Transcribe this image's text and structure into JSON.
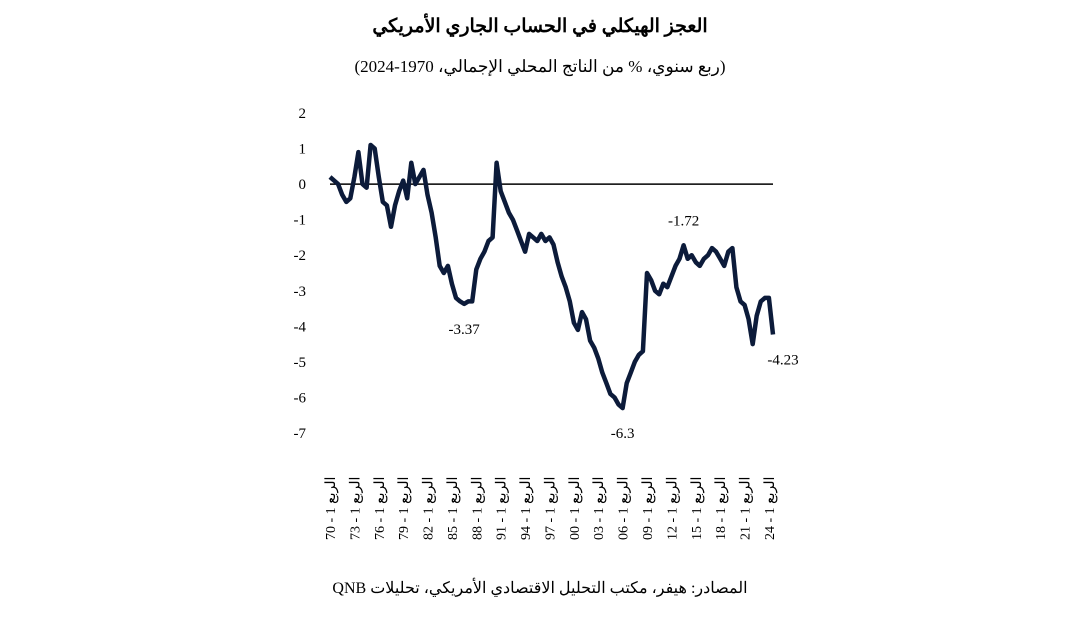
{
  "chart_data": {
    "type": "line",
    "title": "العجز الهيكلي في الحساب الجاري الأمريكي",
    "subtitle": "(ربع سنوي، % من الناتج المحلي الإجمالي، 1970-2024)",
    "source": "المصادر: هيفر، مكتب التحليل الاقتصادي الأمريكي، تحليلات QNB",
    "categories": [
      "الربع 1 - 70",
      null,
      null,
      null,
      null,
      null,
      "الربع 1 - 73",
      null,
      null,
      null,
      null,
      null,
      "الربع 1 - 76",
      null,
      null,
      null,
      null,
      null,
      "الربع 1 - 79",
      null,
      null,
      null,
      null,
      null,
      "الربع 1 - 82",
      null,
      null,
      null,
      null,
      null,
      "الربع 1 - 85",
      null,
      null,
      null,
      null,
      null,
      "الربع 1 - 88",
      null,
      null,
      null,
      null,
      null,
      "الربع 1 - 91",
      null,
      null,
      null,
      null,
      null,
      "الربع 1 - 94",
      null,
      null,
      null,
      null,
      null,
      "الربع 1 - 97",
      null,
      null,
      null,
      null,
      null,
      "الربع 1 - 00",
      null,
      null,
      null,
      null,
      null,
      "الربع 1 - 03",
      null,
      null,
      null,
      null,
      null,
      "الربع 1 - 06",
      null,
      null,
      null,
      null,
      null,
      "الربع 1 - 09",
      null,
      null,
      null,
      null,
      null,
      "الربع 1 - 12",
      null,
      null,
      null,
      null,
      null,
      "الربع 1 - 15",
      null,
      null,
      null,
      null,
      null,
      "الربع 1 - 18",
      null,
      null,
      null,
      null,
      null,
      "الربع 1 - 21",
      null,
      null,
      null,
      null,
      null,
      "الربع 1 - 24",
      null
    ],
    "values": [
      0.2,
      0.1,
      0.0,
      -0.3,
      -0.5,
      -0.4,
      0.2,
      0.9,
      0.0,
      -0.1,
      1.1,
      1.0,
      0.2,
      -0.5,
      -0.6,
      -1.2,
      -0.6,
      -0.2,
      0.1,
      -0.4,
      0.6,
      0.0,
      0.2,
      0.4,
      -0.3,
      -0.8,
      -1.5,
      -2.3,
      -2.5,
      -2.3,
      -2.8,
      -3.2,
      -3.3,
      -3.37,
      -3.3,
      -3.3,
      -2.4,
      -2.1,
      -1.9,
      -1.6,
      -1.5,
      0.6,
      -0.2,
      -0.5,
      -0.8,
      -1.0,
      -1.3,
      -1.6,
      -1.9,
      -1.4,
      -1.5,
      -1.6,
      -1.4,
      -1.6,
      -1.5,
      -1.7,
      -2.2,
      -2.6,
      -2.9,
      -3.3,
      -3.9,
      -4.1,
      -3.6,
      -3.8,
      -4.4,
      -4.6,
      -4.9,
      -5.3,
      -5.6,
      -5.9,
      -6.0,
      -6.2,
      -6.3,
      -5.6,
      -5.3,
      -5.0,
      -4.8,
      -4.7,
      -2.5,
      -2.7,
      -3.0,
      -3.1,
      -2.8,
      -2.9,
      -2.6,
      -2.3,
      -2.1,
      -1.72,
      -2.1,
      -2.0,
      -2.2,
      -2.3,
      -2.1,
      -2.0,
      -1.8,
      -1.9,
      -2.1,
      -2.3,
      -1.9,
      -1.8,
      -2.9,
      -3.3,
      -3.4,
      -3.8,
      -4.5,
      -3.7,
      -3.3,
      -3.2,
      -3.2,
      -4.23
    ],
    "value_labels": [
      null,
      null,
      null,
      null,
      null,
      null,
      null,
      null,
      null,
      null,
      null,
      null,
      null,
      null,
      null,
      null,
      null,
      null,
      null,
      null,
      null,
      null,
      null,
      null,
      null,
      null,
      null,
      null,
      null,
      null,
      null,
      null,
      null,
      "-3.37",
      null,
      null,
      null,
      null,
      null,
      null,
      null,
      null,
      null,
      null,
      null,
      null,
      null,
      null,
      null,
      null,
      null,
      null,
      null,
      null,
      null,
      null,
      null,
      null,
      null,
      null,
      null,
      null,
      null,
      null,
      null,
      null,
      null,
      null,
      null,
      null,
      null,
      null,
      "-6.3",
      null,
      null,
      null,
      null,
      null,
      null,
      null,
      null,
      null,
      null,
      null,
      null,
      null,
      null,
      "-1.72",
      null,
      null,
      null,
      null,
      null,
      null,
      null,
      null,
      null,
      null,
      null,
      null,
      null,
      null,
      null,
      null,
      null,
      null,
      null,
      null,
      null,
      "-4.23"
    ],
    "color": "#0c1b3a",
    "ylim": [
      -7,
      2
    ],
    "yticks": [
      2,
      1,
      0,
      -1,
      -2,
      -3,
      -4,
      -5,
      -6,
      -7
    ],
    "zero_line": true
  }
}
